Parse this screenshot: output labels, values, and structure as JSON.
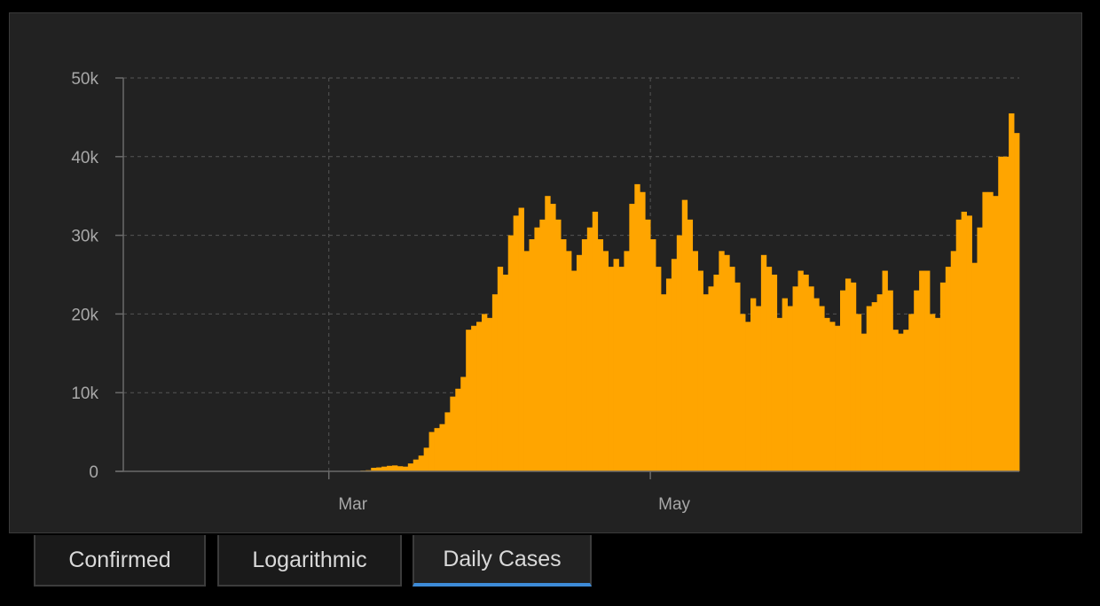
{
  "tabs": [
    {
      "label": "Confirmed",
      "active": false
    },
    {
      "label": "Logarithmic",
      "active": false
    },
    {
      "label": "Daily Cases",
      "active": true
    }
  ],
  "colors": {
    "bar": "#FFA500",
    "background": "#222222",
    "grid": "#555555",
    "axis_text": "#a8a8a8",
    "active_tab_underline": "#3d8bd8"
  },
  "chart_data": {
    "type": "bar",
    "title": "",
    "xlabel": "",
    "ylabel": "",
    "ylim": [
      0,
      50000
    ],
    "yticks": [
      0,
      10000,
      20000,
      30000,
      40000,
      50000
    ],
    "ytick_labels": [
      "0",
      "10k",
      "20k",
      "30k",
      "40k",
      "50k"
    ],
    "x_start": "2020-01-22",
    "xticks": [
      {
        "date": "2020-03-01",
        "label": "Mar"
      },
      {
        "date": "2020-05-01",
        "label": "May"
      }
    ],
    "grid": true,
    "values": [
      1,
      0,
      1,
      0,
      3,
      0,
      0,
      0,
      2,
      1,
      0,
      0,
      1,
      0,
      0,
      1,
      0,
      0,
      0,
      0,
      0,
      0,
      0,
      0,
      0,
      0,
      0,
      0,
      0,
      0,
      0,
      0,
      0,
      0,
      0,
      0,
      0,
      0,
      0,
      0,
      8,
      4,
      12,
      20,
      50,
      100,
      140,
      450,
      500,
      600,
      700,
      750,
      650,
      600,
      1000,
      1500,
      2000,
      3000,
      5000,
      5500,
      6000,
      7500,
      9500,
      10500,
      12000,
      18000,
      18500,
      19000,
      20000,
      19500,
      22500,
      26000,
      25000,
      30000,
      32500,
      33500,
      28000,
      29500,
      31000,
      32000,
      35000,
      34000,
      32000,
      29500,
      28000,
      25500,
      27500,
      29500,
      31000,
      33000,
      29500,
      28000,
      26000,
      27000,
      26000,
      28000,
      34000,
      36500,
      35500,
      32000,
      29500,
      26000,
      22500,
      24500,
      27000,
      30000,
      34500,
      32000,
      28000,
      25500,
      22500,
      23500,
      25000,
      28000,
      27500,
      26000,
      24000,
      20000,
      19000,
      22000,
      21000,
      27500,
      26000,
      25000,
      19500,
      22000,
      21000,
      23500,
      25500,
      25000,
      23500,
      22000,
      21000,
      19500,
      19000,
      18500,
      23000,
      24500,
      24000,
      20000,
      17500,
      21000,
      21500,
      22500,
      25500,
      23000,
      18000,
      17500,
      18000,
      20000,
      23000,
      25500,
      25500,
      20000,
      19500,
      24000,
      26000,
      28000,
      32000,
      33000,
      32500,
      26500,
      31000,
      35500,
      35500,
      35000,
      40000,
      40000,
      45500,
      43000
    ]
  }
}
